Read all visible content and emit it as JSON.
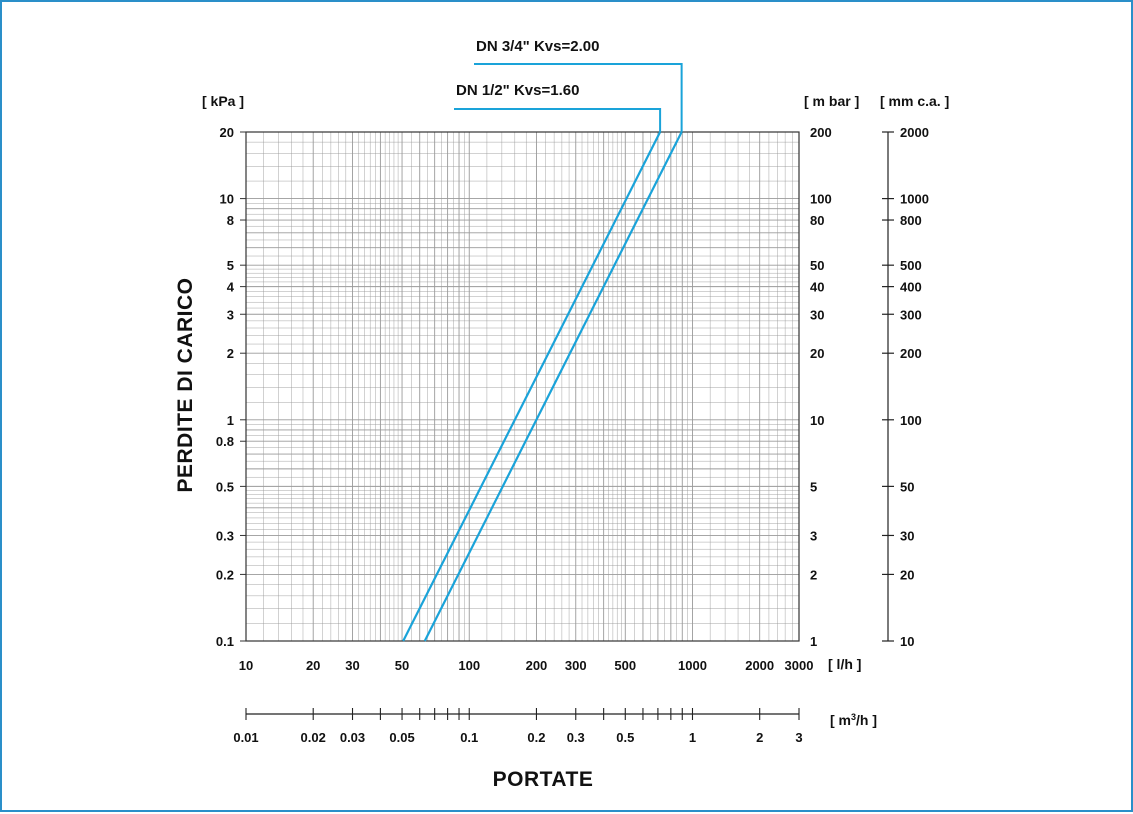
{
  "chart_data": {
    "type": "line",
    "x_scale": "log",
    "y_scale": "log",
    "xlim": [
      10,
      3000
    ],
    "ylim": [
      0.1,
      20
    ],
    "grid": true,
    "x_unit": "[ l/h ]",
    "x_ticks": [
      "10",
      "20",
      "30",
      "50",
      "100",
      "200",
      "300",
      "500",
      "1000",
      "2000",
      "3000"
    ],
    "x2_unit": "[ m³/h ]",
    "x2_ticks": [
      "0.01",
      "0.02",
      "0.03",
      "0.05",
      "0.1",
      "0.2",
      "0.3",
      "0.5",
      "1",
      "2",
      "3"
    ],
    "y_unit": "[ kPa ]",
    "y_ticks": [
      "0.1",
      "0.2",
      "0.3",
      "0.5",
      "0.8",
      "1",
      "2",
      "3",
      "4",
      "5",
      "8",
      "10",
      "20"
    ],
    "y2_unit": "[ m bar ]",
    "y2_ticks": [
      "1",
      "2",
      "3",
      "5",
      "10",
      "20",
      "30",
      "40",
      "50",
      "80",
      "100",
      "200"
    ],
    "y3_unit": "[ mm c.a. ]",
    "y3_ticks": [
      "10",
      "20",
      "30",
      "50",
      "100",
      "200",
      "300",
      "400",
      "500",
      "800",
      "1000",
      "2000"
    ],
    "ylabel": "PERDITE DI CARICO",
    "xlabel": "PORTATE",
    "line_color": "#1aa3d9",
    "grid_color": "#9a9a9a",
    "series": [
      {
        "name": "DN 1/2\" Kvs=1.60",
        "kvs": 1.6,
        "x": [
          50.6,
          716
        ],
        "y": [
          0.1,
          20
        ]
      },
      {
        "name": "DN 3/4\" Kvs=2.00",
        "kvs": 2.0,
        "x": [
          63.2,
          894
        ],
        "y": [
          0.1,
          20
        ]
      }
    ]
  }
}
